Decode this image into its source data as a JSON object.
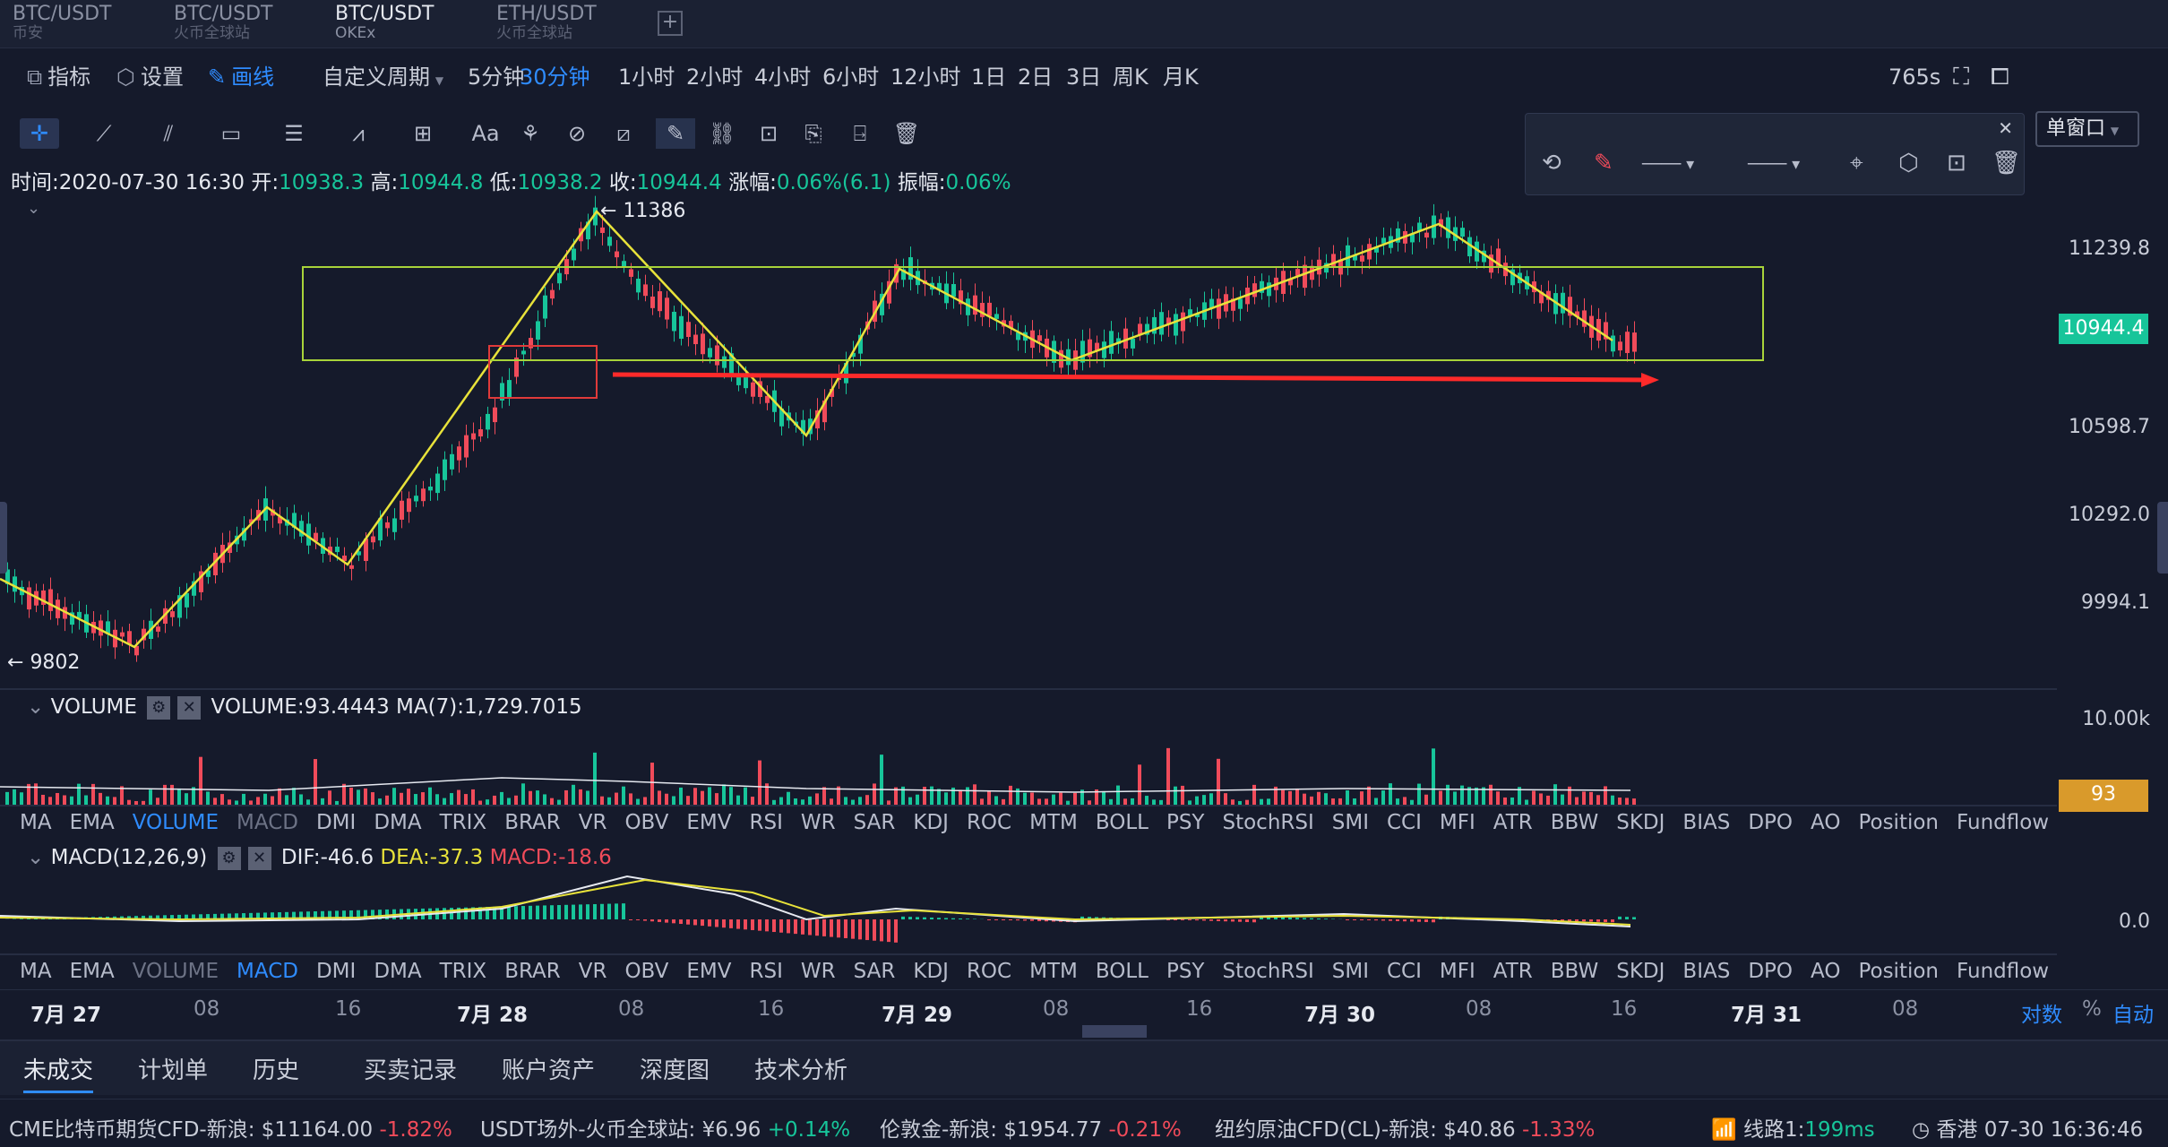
{
  "tabs": [
    {
      "pair": "BTC/USDT",
      "exchange": "币安",
      "active": false
    },
    {
      "pair": "BTC/USDT",
      "exchange": "火币全球站",
      "active": false
    },
    {
      "pair": "BTC/USDT",
      "exchange": "OKEx",
      "active": true
    },
    {
      "pair": "ETH/USDT",
      "exchange": "火币全球站",
      "active": false
    }
  ],
  "toolbar": {
    "indicator": "指标",
    "settings": "设置",
    "draw": "画线",
    "custom_period": "自定义周期",
    "periods": [
      "5分钟",
      "30分钟",
      "1小时",
      "2小时",
      "4小时",
      "6小时",
      "12小时",
      "1日",
      "2日",
      "3日",
      "周K",
      "月K"
    ],
    "active_period": "30分钟",
    "delay": "765s",
    "window": "单窗口"
  },
  "drawing_tools": [
    "crosshair-icon",
    "line-icon",
    "parallel-icon",
    "rectangle-icon",
    "fib-icon",
    "wave-icon",
    "measure-icon",
    "text-icon",
    "pattern-icon",
    "magnet-icon",
    "ruler-icon",
    "pen-icon",
    "chain-icon",
    "lock-icon",
    "copy-icon",
    "export-icon",
    "trash-icon"
  ],
  "ohlc": {
    "time_label": "时间:",
    "time": "2020-07-30 16:30",
    "open_label": "开:",
    "open": "10938.3",
    "high_label": "高:",
    "high": "10944.8",
    "low_label": "低:",
    "low": "10938.2",
    "close_label": "收:",
    "close": "10944.4",
    "change_label": "涨幅:",
    "change": "0.06%(6.1)",
    "amp_label": "振幅:",
    "amp": "0.06%"
  },
  "chart_annotations": {
    "high": "11386",
    "low": "9802"
  },
  "price_axis": [
    "11239.8",
    "10598.7",
    "10292.0",
    "9994.1"
  ],
  "price_tag": "10944.4",
  "volume": {
    "name": "VOLUME",
    "value": "VOLUME:93.4443",
    "ma": "MA(7):1,729.7015",
    "axis": "10.00k",
    "tag": "93"
  },
  "macd": {
    "name": "MACD(12,26,9)",
    "dif": "DIF:-46.6",
    "dea": "DEA:-37.3",
    "macd": "MACD:-18.6",
    "axis": "0.0"
  },
  "indicators": [
    "MA",
    "EMA",
    "VOLUME",
    "MACD",
    "DMI",
    "DMA",
    "TRIX",
    "BRAR",
    "VR",
    "OBV",
    "EMV",
    "RSI",
    "WR",
    "SAR",
    "KDJ",
    "ROC",
    "MTM",
    "BOLL",
    "PSY",
    "StochRSI",
    "SMI",
    "CCI",
    "MFI",
    "ATR",
    "BBW",
    "SKDJ",
    "BIAS",
    "DPO",
    "AO",
    "Position",
    "Fundflow"
  ],
  "time_axis": [
    "7月 27",
    "08",
    "16",
    "7月 28",
    "08",
    "16",
    "7月 29",
    "08",
    "16",
    "7月 30",
    "08",
    "16",
    "7月 31",
    "08"
  ],
  "axis_options": {
    "log": "对数",
    "pct": "%",
    "auto": "自动"
  },
  "bottom_tabs": [
    "未成交",
    "计划单",
    "历史",
    "买卖记录",
    "账户资产",
    "深度图",
    "技术分析"
  ],
  "tickers": [
    {
      "name": "CME比特币期货CFD-新浪:",
      "price": "$11164.00",
      "chg": "-1.82%",
      "dir": "down"
    },
    {
      "name": "USDT场外-火币全球站:",
      "price": "¥6.96",
      "chg": "+0.14%",
      "dir": "up"
    },
    {
      "name": "伦敦金-新浪:",
      "price": "$1954.77",
      "chg": "-0.21%",
      "dir": "down"
    },
    {
      "name": "纽约原油CFD(CL)-新浪:",
      "price": "$40.86",
      "chg": "-1.33%",
      "dir": "down"
    }
  ],
  "status": {
    "line": "线路1:",
    "latency": "199ms",
    "clock": "香港 07-30 16:36:46"
  },
  "colors": {
    "up": "#17c59a",
    "down": "#f04b5a",
    "accent": "#2f8cff",
    "drawing": "#e8e23a",
    "box": "#a8d33a",
    "arrow": "#ff2a2a"
  }
}
